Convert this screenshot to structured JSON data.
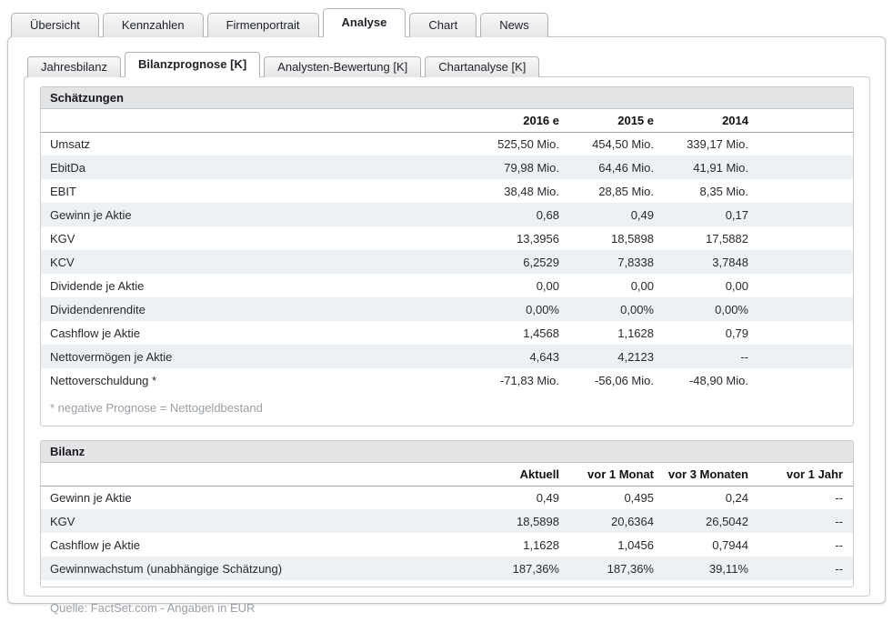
{
  "main_tabs": {
    "items": [
      {
        "label": "Übersicht",
        "active": false
      },
      {
        "label": "Kennzahlen",
        "active": false
      },
      {
        "label": "Firmenportrait",
        "active": false
      },
      {
        "label": "Analyse",
        "active": true
      },
      {
        "label": "Chart",
        "active": false
      },
      {
        "label": "News",
        "active": false
      }
    ]
  },
  "sub_tabs": {
    "items": [
      {
        "label": "Jahresbilanz",
        "active": false
      },
      {
        "label": "Bilanzprognose [K]",
        "active": true
      },
      {
        "label": "Analysten-Bewertung [K]",
        "active": false
      },
      {
        "label": "Chartanalyse [K]",
        "active": false
      }
    ]
  },
  "schaetzungen": {
    "title": "Schätzungen",
    "columns": [
      "2016 e",
      "2015 e",
      "2014"
    ],
    "rows": [
      {
        "label": "Umsatz",
        "values": [
          "525,50 Mio.",
          "454,50 Mio.",
          "339,17 Mio."
        ]
      },
      {
        "label": "EbitDa",
        "values": [
          "79,98 Mio.",
          "64,46 Mio.",
          "41,91 Mio."
        ]
      },
      {
        "label": "EBIT",
        "values": [
          "38,48 Mio.",
          "28,85 Mio.",
          "8,35 Mio."
        ]
      },
      {
        "label": "Gewinn je Aktie",
        "values": [
          "0,68",
          "0,49",
          "0,17"
        ]
      },
      {
        "label": "KGV",
        "values": [
          "13,3956",
          "18,5898",
          "17,5882"
        ]
      },
      {
        "label": "KCV",
        "values": [
          "6,2529",
          "7,8338",
          "3,7848"
        ]
      },
      {
        "label": "Dividende je Aktie",
        "values": [
          "0,00",
          "0,00",
          "0,00"
        ]
      },
      {
        "label": "Dividendenrendite",
        "values": [
          "0,00%",
          "0,00%",
          "0,00%"
        ]
      },
      {
        "label": "Cashflow je Aktie",
        "values": [
          "1,4568",
          "1,1628",
          "0,79"
        ]
      },
      {
        "label": "Nettovermögen je Aktie",
        "values": [
          "4,643",
          "4,2123",
          "--"
        ]
      },
      {
        "label": "Nettoverschuldung *",
        "values": [
          "-71,83 Mio.",
          "-56,06 Mio.",
          "-48,90 Mio."
        ]
      }
    ],
    "footnote": "* negative Prognose = Nettogeldbestand"
  },
  "bilanz": {
    "title": "Bilanz",
    "columns": [
      "Aktuell",
      "vor 1 Monat",
      "vor 3 Monaten",
      "vor 1 Jahr"
    ],
    "rows": [
      {
        "label": "Gewinn je Aktie",
        "values": [
          "0,49",
          "0,495",
          "0,24",
          "--"
        ]
      },
      {
        "label": "KGV",
        "values": [
          "18,5898",
          "20,6364",
          "26,5042",
          "--"
        ]
      },
      {
        "label": "Cashflow je Aktie",
        "values": [
          "1,1628",
          "1,0456",
          "0,7944",
          "--"
        ]
      },
      {
        "label": "Gewinnwachstum (unabhängige Schätzung)",
        "values": [
          "187,36%",
          "187,36%",
          "39,11%",
          "--"
        ]
      }
    ]
  },
  "footer": {
    "source": "Quelle: FactSet.com - Angaben in EUR"
  },
  "colors": {
    "band_bg": "#e2e4e6",
    "alt_row_bg": "#eef1f4",
    "panel_border": "#c6c6c6",
    "muted_text": "#9aa0a5",
    "text": "#26292e"
  }
}
